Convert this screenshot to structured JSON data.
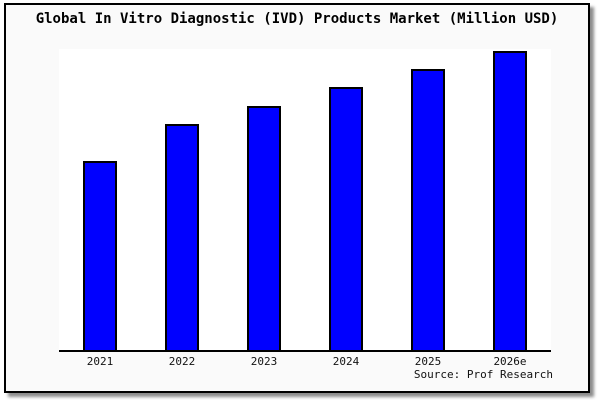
{
  "chart": {
    "title": "Global In Vitro Diagnostic (IVD) Products Market (Million USD)",
    "source": "Source: Prof Research"
  },
  "chart_data": {
    "type": "bar",
    "title": "Global In Vitro Diagnostic (IVD) Products Market (Million USD)",
    "categories": [
      "2021",
      "2022",
      "2023",
      "2024",
      "2025",
      "2026e"
    ],
    "values": [
      63.2,
      75.4,
      81.7,
      87.8,
      93.8,
      100
    ],
    "value_scale": "relative units, tallest bar (2026e) = 100; y-axis has no tick labels in source image",
    "xlabel": "",
    "ylabel": "",
    "ylim": [
      0,
      100.6
    ],
    "grid": false,
    "legend": false,
    "y_axis_visible": false,
    "annotations": [
      "Source: Prof Research"
    ],
    "colors": {
      "bar_fill": "#0000ff",
      "bar_border": "#000000",
      "axis": "#000000",
      "plot_bg": "#ffffff",
      "chart_bg": "#fafafa",
      "title_text": "#000000",
      "label_text": "#111111"
    }
  }
}
